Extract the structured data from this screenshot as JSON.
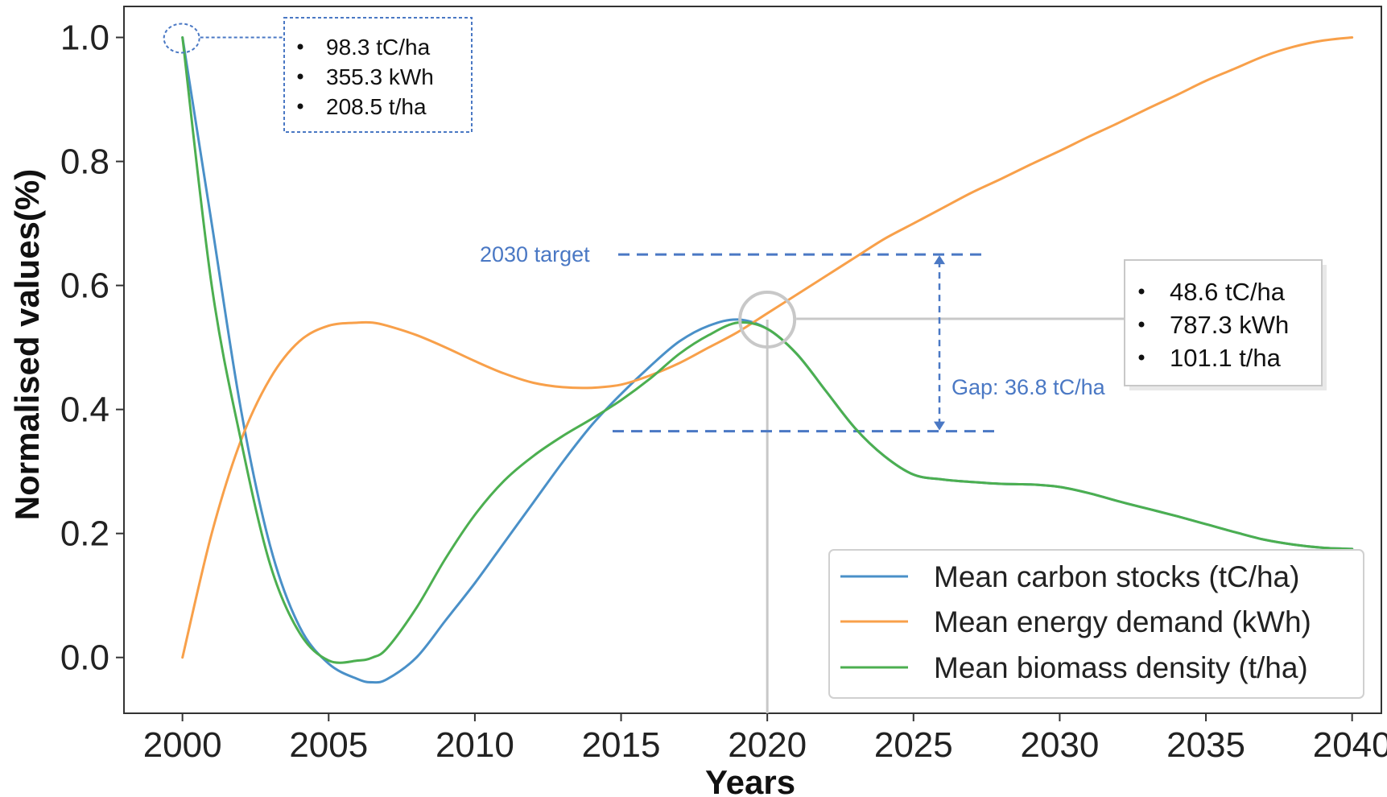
{
  "chart_data": {
    "type": "line",
    "title": "",
    "xlabel": "Years",
    "ylabel": "Normalised values(%)",
    "xlim": [
      1998,
      2041
    ],
    "ylim": [
      -0.09,
      1.05
    ],
    "xticks": [
      2000,
      2005,
      2010,
      2015,
      2020,
      2025,
      2030,
      2035,
      2040
    ],
    "yticks": [
      "0.0",
      "0.2",
      "0.4",
      "0.6",
      "0.8",
      "1.0"
    ],
    "grid": false,
    "legend_position": "bottom-right",
    "series": [
      {
        "name": "Mean carbon stocks (tC/ha)",
        "color": "#4a90c8",
        "x": [
          2000,
          2001,
          2002,
          2003,
          2004,
          2005,
          2006,
          2006.5,
          2007,
          2008,
          2009,
          2010,
          2011,
          2012,
          2013,
          2014,
          2015,
          2016,
          2017,
          2018,
          2019,
          2020,
          2021,
          2022,
          2023,
          2024,
          2025,
          2026,
          2027,
          2028,
          2029,
          2030,
          2031,
          2032,
          2033,
          2034,
          2035,
          2036,
          2037,
          2038,
          2039,
          2040
        ],
        "values": [
          1.0,
          0.7,
          0.4,
          0.18,
          0.05,
          -0.01,
          -0.035,
          -0.04,
          -0.035,
          0.0,
          0.06,
          0.12,
          0.185,
          0.25,
          0.315,
          0.375,
          0.425,
          0.47,
          0.51,
          0.535,
          0.545,
          0.53,
          0.49,
          0.43,
          0.37,
          0.325,
          0.295,
          0.287,
          0.283,
          0.28,
          0.279,
          0.275,
          0.265,
          0.252,
          0.24,
          0.228,
          0.215,
          0.202,
          0.19,
          0.182,
          0.177,
          0.175
        ]
      },
      {
        "name": "Mean energy demand (kWh)",
        "color": "#f8a04a",
        "x": [
          2000,
          2001,
          2002,
          2003,
          2004,
          2005,
          2006,
          2006.5,
          2007,
          2008,
          2009,
          2010,
          2011,
          2012,
          2013,
          2014,
          2015,
          2016,
          2017,
          2018,
          2019,
          2020,
          2021,
          2022,
          2023,
          2024,
          2025,
          2026,
          2027,
          2028,
          2029,
          2030,
          2031,
          2032,
          2033,
          2034,
          2035,
          2036,
          2037,
          2038,
          2039,
          2040
        ],
        "values": [
          0.0,
          0.2,
          0.35,
          0.45,
          0.51,
          0.535,
          0.54,
          0.54,
          0.535,
          0.52,
          0.5,
          0.478,
          0.458,
          0.443,
          0.436,
          0.435,
          0.44,
          0.455,
          0.475,
          0.5,
          0.525,
          0.555,
          0.585,
          0.615,
          0.645,
          0.675,
          0.7,
          0.725,
          0.75,
          0.772,
          0.795,
          0.817,
          0.84,
          0.862,
          0.885,
          0.907,
          0.93,
          0.95,
          0.97,
          0.985,
          0.995,
          1.0
        ]
      },
      {
        "name": "Mean biomass density (t/ha)",
        "color": "#4caf50",
        "x": [
          2000,
          2001,
          2002,
          2003,
          2004,
          2005,
          2006,
          2006.5,
          2007,
          2008,
          2009,
          2010,
          2011,
          2012,
          2013,
          2014,
          2015,
          2016,
          2017,
          2018,
          2019,
          2020,
          2021,
          2022,
          2023,
          2024,
          2025,
          2026,
          2027,
          2028,
          2029,
          2030,
          2031,
          2032,
          2033,
          2034,
          2035,
          2036,
          2037,
          2038,
          2039,
          2040
        ],
        "values": [
          1.0,
          0.6,
          0.35,
          0.15,
          0.04,
          -0.005,
          -0.005,
          0.0,
          0.015,
          0.08,
          0.16,
          0.23,
          0.285,
          0.325,
          0.357,
          0.385,
          0.415,
          0.45,
          0.49,
          0.52,
          0.54,
          0.53,
          0.49,
          0.43,
          0.37,
          0.325,
          0.295,
          0.287,
          0.283,
          0.28,
          0.279,
          0.275,
          0.265,
          0.252,
          0.24,
          0.228,
          0.215,
          0.202,
          0.19,
          0.182,
          0.177,
          0.175
        ]
      }
    ],
    "annotations": {
      "start_box": [
        "98.3 tC/ha",
        "355.3 kWh",
        "208.5 t/ha"
      ],
      "mid_box": [
        "48.6 tC/ha",
        "787.3 kWh",
        "101.1 t/ha"
      ],
      "target_label": "2030 target",
      "gap_label": "Gap: 36.8 tC/ha",
      "target_value": 0.65,
      "current_value": 0.365,
      "highlight_year": 2020,
      "highlight_value": 0.545,
      "start_year": 2000,
      "start_value": 1.0,
      "annotation_color": "#4a78c4",
      "connector_color": "#c8c8c8"
    }
  }
}
